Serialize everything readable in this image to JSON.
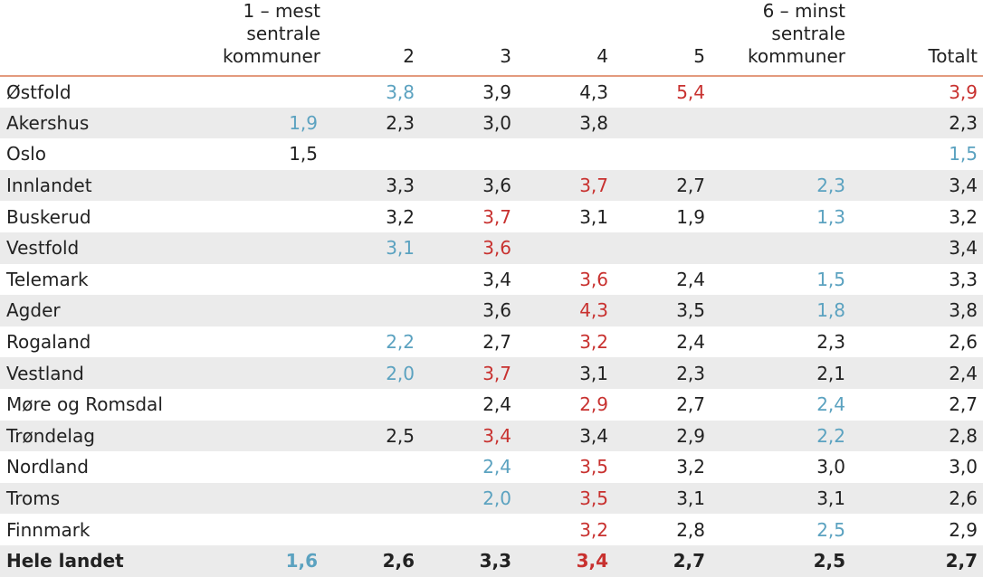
{
  "colors": {
    "low": "#5ba2c0",
    "high": "#c8312f",
    "neutral": "#222222",
    "header_rule": "#e39a7e",
    "stripe": "#ebebeb"
  },
  "columns": [
    "",
    "1 – mest sentrale kommuner",
    "2",
    "3",
    "4",
    "5",
    "6 – minst sentrale kommuner",
    "Totalt"
  ],
  "rows": [
    {
      "region": "Østfold",
      "cells": [
        {
          "v": "",
          "s": "neutral"
        },
        {
          "v": "3,8",
          "s": "low"
        },
        {
          "v": "3,9",
          "s": "neutral"
        },
        {
          "v": "4,3",
          "s": "neutral"
        },
        {
          "v": "5,4",
          "s": "high"
        },
        {
          "v": "",
          "s": "neutral"
        },
        {
          "v": "3,9",
          "s": "high"
        }
      ]
    },
    {
      "region": "Akershus",
      "cells": [
        {
          "v": "1,9",
          "s": "low"
        },
        {
          "v": "2,3",
          "s": "neutral"
        },
        {
          "v": "3,0",
          "s": "neutral"
        },
        {
          "v": "3,8",
          "s": "neutral"
        },
        {
          "v": "",
          "s": "neutral"
        },
        {
          "v": "",
          "s": "neutral"
        },
        {
          "v": "2,3",
          "s": "neutral"
        }
      ]
    },
    {
      "region": "Oslo",
      "cells": [
        {
          "v": "1,5",
          "s": "neutral"
        },
        {
          "v": "",
          "s": "neutral"
        },
        {
          "v": "",
          "s": "neutral"
        },
        {
          "v": "",
          "s": "neutral"
        },
        {
          "v": "",
          "s": "neutral"
        },
        {
          "v": "",
          "s": "neutral"
        },
        {
          "v": "1,5",
          "s": "low"
        }
      ]
    },
    {
      "region": "Innlandet",
      "cells": [
        {
          "v": "",
          "s": "neutral"
        },
        {
          "v": "3,3",
          "s": "neutral"
        },
        {
          "v": "3,6",
          "s": "neutral"
        },
        {
          "v": "3,7",
          "s": "high"
        },
        {
          "v": "2,7",
          "s": "neutral"
        },
        {
          "v": "2,3",
          "s": "low"
        },
        {
          "v": "3,4",
          "s": "neutral"
        }
      ]
    },
    {
      "region": "Buskerud",
      "cells": [
        {
          "v": "",
          "s": "neutral"
        },
        {
          "v": "3,2",
          "s": "neutral"
        },
        {
          "v": "3,7",
          "s": "high"
        },
        {
          "v": "3,1",
          "s": "neutral"
        },
        {
          "v": "1,9",
          "s": "neutral"
        },
        {
          "v": "1,3",
          "s": "low"
        },
        {
          "v": "3,2",
          "s": "neutral"
        }
      ]
    },
    {
      "region": "Vestfold",
      "cells": [
        {
          "v": "",
          "s": "neutral"
        },
        {
          "v": "3,1",
          "s": "low"
        },
        {
          "v": "3,6",
          "s": "high"
        },
        {
          "v": "",
          "s": "neutral"
        },
        {
          "v": "",
          "s": "neutral"
        },
        {
          "v": "",
          "s": "neutral"
        },
        {
          "v": "3,4",
          "s": "neutral"
        }
      ]
    },
    {
      "region": "Telemark",
      "cells": [
        {
          "v": "",
          "s": "neutral"
        },
        {
          "v": "",
          "s": "neutral"
        },
        {
          "v": "3,4",
          "s": "neutral"
        },
        {
          "v": "3,6",
          "s": "high"
        },
        {
          "v": "2,4",
          "s": "neutral"
        },
        {
          "v": "1,5",
          "s": "low"
        },
        {
          "v": "3,3",
          "s": "neutral"
        }
      ]
    },
    {
      "region": "Agder",
      "cells": [
        {
          "v": "",
          "s": "neutral"
        },
        {
          "v": "",
          "s": "neutral"
        },
        {
          "v": "3,6",
          "s": "neutral"
        },
        {
          "v": "4,3",
          "s": "high"
        },
        {
          "v": "3,5",
          "s": "neutral"
        },
        {
          "v": "1,8",
          "s": "low"
        },
        {
          "v": "3,8",
          "s": "neutral"
        }
      ]
    },
    {
      "region": "Rogaland",
      "cells": [
        {
          "v": "",
          "s": "neutral"
        },
        {
          "v": "2,2",
          "s": "low"
        },
        {
          "v": "2,7",
          "s": "neutral"
        },
        {
          "v": "3,2",
          "s": "high"
        },
        {
          "v": "2,4",
          "s": "neutral"
        },
        {
          "v": "2,3",
          "s": "neutral"
        },
        {
          "v": "2,6",
          "s": "neutral"
        }
      ]
    },
    {
      "region": "Vestland",
      "cells": [
        {
          "v": "",
          "s": "neutral"
        },
        {
          "v": "2,0",
          "s": "low"
        },
        {
          "v": "3,7",
          "s": "high"
        },
        {
          "v": "3,1",
          "s": "neutral"
        },
        {
          "v": "2,3",
          "s": "neutral"
        },
        {
          "v": "2,1",
          "s": "neutral"
        },
        {
          "v": "2,4",
          "s": "neutral"
        }
      ]
    },
    {
      "region": "Møre og Romsdal",
      "cells": [
        {
          "v": "",
          "s": "neutral"
        },
        {
          "v": "",
          "s": "neutral"
        },
        {
          "v": "2,4",
          "s": "neutral"
        },
        {
          "v": "2,9",
          "s": "high"
        },
        {
          "v": "2,7",
          "s": "neutral"
        },
        {
          "v": "2,4",
          "s": "low"
        },
        {
          "v": "2,7",
          "s": "neutral"
        }
      ]
    },
    {
      "region": "Trøndelag",
      "cells": [
        {
          "v": "",
          "s": "neutral"
        },
        {
          "v": "2,5",
          "s": "neutral"
        },
        {
          "v": "3,4",
          "s": "high"
        },
        {
          "v": "3,4",
          "s": "neutral"
        },
        {
          "v": "2,9",
          "s": "neutral"
        },
        {
          "v": "2,2",
          "s": "low"
        },
        {
          "v": "2,8",
          "s": "neutral"
        }
      ]
    },
    {
      "region": "Nordland",
      "cells": [
        {
          "v": "",
          "s": "neutral"
        },
        {
          "v": "",
          "s": "neutral"
        },
        {
          "v": "2,4",
          "s": "low"
        },
        {
          "v": "3,5",
          "s": "high"
        },
        {
          "v": "3,2",
          "s": "neutral"
        },
        {
          "v": "3,0",
          "s": "neutral"
        },
        {
          "v": "3,0",
          "s": "neutral"
        }
      ]
    },
    {
      "region": "Troms",
      "cells": [
        {
          "v": "",
          "s": "neutral"
        },
        {
          "v": "",
          "s": "neutral"
        },
        {
          "v": "2,0",
          "s": "low"
        },
        {
          "v": "3,5",
          "s": "high"
        },
        {
          "v": "3,1",
          "s": "neutral"
        },
        {
          "v": "3,1",
          "s": "neutral"
        },
        {
          "v": "2,6",
          "s": "neutral"
        }
      ]
    },
    {
      "region": "Finnmark",
      "cells": [
        {
          "v": "",
          "s": "neutral"
        },
        {
          "v": "",
          "s": "neutral"
        },
        {
          "v": "",
          "s": "neutral"
        },
        {
          "v": "3,2",
          "s": "high"
        },
        {
          "v": "2,8",
          "s": "neutral"
        },
        {
          "v": "2,5",
          "s": "low"
        },
        {
          "v": "2,9",
          "s": "neutral"
        }
      ]
    },
    {
      "region": "Hele landet",
      "total": true,
      "cells": [
        {
          "v": "1,6",
          "s": "low"
        },
        {
          "v": "2,6",
          "s": "neutral"
        },
        {
          "v": "3,3",
          "s": "neutral"
        },
        {
          "v": "3,4",
          "s": "high"
        },
        {
          "v": "2,7",
          "s": "neutral"
        },
        {
          "v": "2,5",
          "s": "neutral"
        },
        {
          "v": "2,7",
          "s": "neutral"
        }
      ]
    }
  ]
}
